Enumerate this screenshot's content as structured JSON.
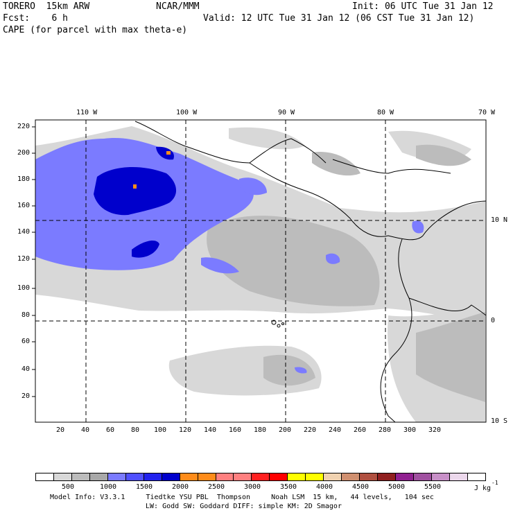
{
  "header": {
    "model": "TORERO  15km ARW",
    "org": "NCAR/MMM",
    "init": "Init: 06 UTC Tue 31 Jan 12",
    "fcst": "Fcst:    6 h",
    "valid": "Valid: 12 UTC Tue 31 Jan 12 (06 CST Tue 31 Jan 12)",
    "field": "CAPE (for parcel with max theta-e)"
  },
  "map": {
    "top_lon_labels": [
      "110 W",
      "100 W",
      "90 W",
      "80 W",
      "70 W"
    ],
    "right_lat_labels": [
      "10 N",
      "0",
      "10 S"
    ],
    "y_ticks": [
      "220",
      "200",
      "180",
      "160",
      "140",
      "120",
      "100",
      "80",
      "60",
      "40",
      "20"
    ],
    "x_ticks": [
      "20",
      "40",
      "60",
      "80",
      "100",
      "120",
      "140",
      "160",
      "180",
      "200",
      "220",
      "240",
      "260",
      "280",
      "300",
      "320"
    ]
  },
  "colorbar": {
    "labels": [
      "500",
      "1000",
      "1500",
      "2000",
      "2500",
      "3000",
      "3500",
      "4000",
      "4500",
      "5000",
      "5500"
    ],
    "unit": "J kg",
    "unit_exp": "-1",
    "colors": [
      "#ffffff",
      "#d8d8d8",
      "#bcbcbc",
      "#a8a8a8",
      "#7b7bff",
      "#5050ff",
      "#2222ee",
      "#0000cc",
      "#ff8c1a",
      "#ff8c1a",
      "#ff8080",
      "#ff8080",
      "#ff2020",
      "#ff0000",
      "#ffff00",
      "#ffff00",
      "#f0d2b0",
      "#d09070",
      "#b05040",
      "#902020",
      "#902090",
      "#a050a0",
      "#c890c8",
      "#ecd8ec",
      "#ffffff"
    ]
  },
  "footer": {
    "line1": "Model Info: V3.3.1     Tiedtke YSU PBL  Thompson     Noah LSM  15 km,   44 levels,   104 sec",
    "line2": "LW: Godd SW: Goddard DIFF: simple KM: 2D Smagor"
  }
}
